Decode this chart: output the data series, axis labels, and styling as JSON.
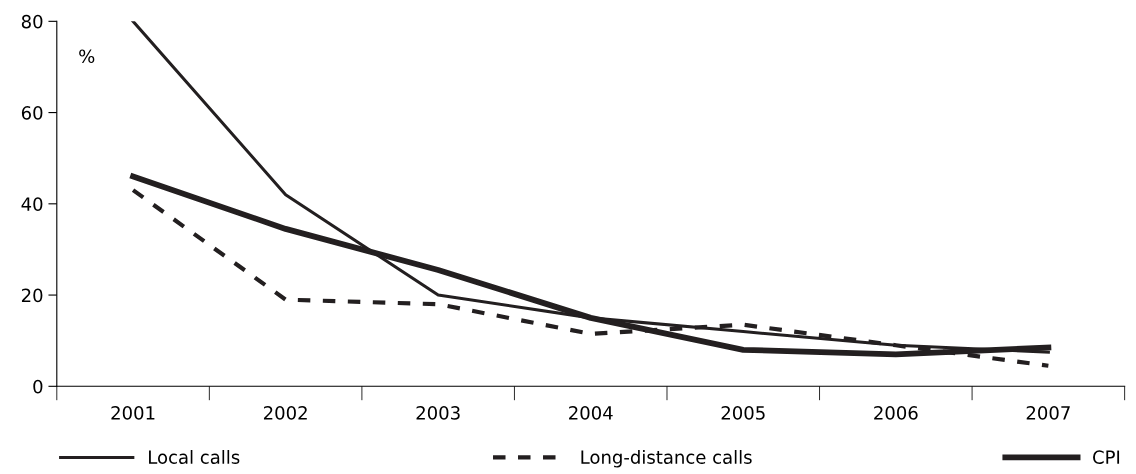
{
  "chart_data": {
    "type": "line",
    "ylabel": "%",
    "categories": [
      "2001",
      "2002",
      "2003",
      "2004",
      "2005",
      "2006",
      "2007"
    ],
    "series": [
      {
        "name": "Local calls",
        "color": "#231f20",
        "line_style": "solid",
        "values": [
          80,
          42,
          20,
          15,
          12,
          9,
          7.5
        ]
      },
      {
        "name": "Long-distance calls",
        "color": "#231f20",
        "line_style": "dashed",
        "values": [
          43,
          19,
          18,
          11.5,
          13.5,
          9,
          4.5
        ]
      },
      {
        "name": "CPI",
        "color": "#231f20",
        "line_style": "solid",
        "values": [
          46,
          34.5,
          25.5,
          15,
          8,
          7,
          8.5
        ]
      }
    ],
    "ylim": [
      0,
      80
    ],
    "yticks": [
      0,
      20,
      40,
      60,
      80
    ],
    "grid": false,
    "legend": "bottom",
    "marker": "none"
  }
}
